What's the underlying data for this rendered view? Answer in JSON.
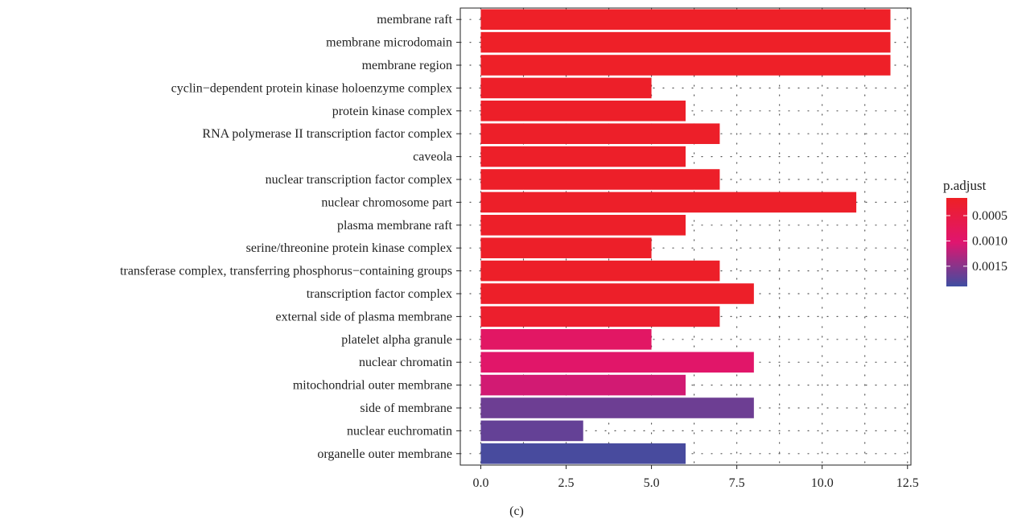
{
  "chart_data": {
    "type": "bar",
    "orientation": "horizontal",
    "categories": [
      "membrane raft",
      "membrane microdomain",
      "membrane region",
      "cyclin−dependent protein kinase holoenzyme complex",
      "protein kinase complex",
      "RNA polymerase II transcription factor complex",
      "caveola",
      "nuclear transcription factor complex",
      "nuclear chromosome part",
      "plasma membrane raft",
      "serine/threonine protein kinase complex",
      "transferase complex, transferring phosphorus−containing groups",
      "transcription factor complex",
      "external side of plasma membrane",
      "platelet alpha granule",
      "nuclear chromatin",
      "mitochondrial outer membrane",
      "side of membrane",
      "nuclear euchromatin",
      "organelle outer membrane"
    ],
    "values": [
      12,
      12,
      12,
      5,
      6,
      7,
      6,
      7,
      11,
      6,
      5,
      7,
      8,
      7,
      5,
      8,
      6,
      8,
      3,
      6
    ],
    "p_adjust": [
      0.00018,
      0.00018,
      0.00018,
      0.0002,
      0.0002,
      0.0002,
      0.0002,
      0.0002,
      0.0002,
      0.0002,
      0.0002,
      0.0002,
      0.0002,
      0.00025,
      0.0009,
      0.00095,
      0.0011,
      0.00165,
      0.0017,
      0.00185
    ],
    "xlim": [
      -0.6,
      12.6
    ],
    "xticks": [
      "0.0",
      "2.5",
      "5.0",
      "7.5",
      "10.0",
      "12.5"
    ],
    "xtick_values": [
      0,
      2.5,
      5,
      7.5,
      10,
      12.5
    ],
    "grid": true,
    "xlabel": "",
    "ylabel": "",
    "legend": {
      "title": "p.adjust",
      "position": "right",
      "labels": [
        "0.0005",
        "0.0010",
        "0.0015"
      ],
      "label_values": [
        0.0005,
        0.001,
        0.0015
      ],
      "range": [
        0.00015,
        0.0019
      ],
      "low_color": "#ee2025",
      "mid_color": "#e0156f",
      "high_color": "#3f4ea1"
    }
  },
  "caption": "(c)"
}
